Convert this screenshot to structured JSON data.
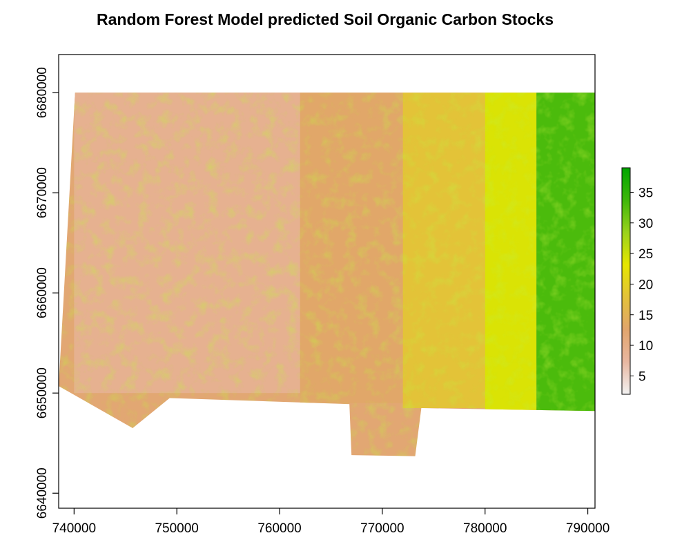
{
  "chart_data": {
    "type": "heatmap",
    "title": "Random Forest Model predicted Soil Organic Carbon Stocks",
    "xlabel": "",
    "ylabel": "",
    "xlim": [
      738500,
      790700
    ],
    "ylim": [
      6638500,
      6683800
    ],
    "x_ticks": [
      740000,
      750000,
      760000,
      770000,
      780000,
      790000
    ],
    "x_tick_labels": [
      "740000",
      "750000",
      "760000",
      "770000",
      "780000",
      "790000"
    ],
    "y_ticks": [
      6640000,
      6650000,
      6660000,
      6670000,
      6680000
    ],
    "y_tick_labels": [
      "6640000",
      "6650000",
      "6660000",
      "6670000",
      "6680000"
    ],
    "grid": false,
    "legend": {
      "position": "right",
      "range": [
        2,
        39
      ],
      "ticks": [
        5,
        10,
        15,
        20,
        25,
        30,
        35
      ],
      "tick_labels": [
        "5",
        "10",
        "15",
        "20",
        "25",
        "30",
        "35"
      ]
    },
    "colors": {
      "scale": [
        "#f2f2f2",
        "#e8b7a1",
        "#e1a56d",
        "#e3c23a",
        "#e6e600",
        "#9bd21c",
        "#3fb70a",
        "#00a600"
      ]
    },
    "region_outline": [
      [
        740100,
        6680000
      ],
      [
        790700,
        6680000
      ],
      [
        790700,
        6648200
      ],
      [
        773800,
        6648500
      ],
      [
        773200,
        6643700
      ],
      [
        767000,
        6643800
      ],
      [
        766800,
        6648900
      ],
      [
        749300,
        6649500
      ],
      [
        745700,
        6646500
      ],
      [
        738500,
        6650700
      ]
    ],
    "value_zones": [
      {
        "x": [
          740000,
          762000
        ],
        "y": [
          6650000,
          6680000
        ],
        "value": 9
      },
      {
        "x": [
          762000,
          772000
        ],
        "y": [
          6649000,
          6680000
        ],
        "value": 13
      },
      {
        "x": [
          772000,
          780000
        ],
        "y": [
          6648500,
          6680000
        ],
        "value": 18
      },
      {
        "x": [
          780000,
          785000
        ],
        "y": [
          6648300,
          6680000
        ],
        "value": 24
      },
      {
        "x": [
          785000,
          790700
        ],
        "y": [
          6648200,
          6680000
        ],
        "value": 33
      }
    ]
  }
}
